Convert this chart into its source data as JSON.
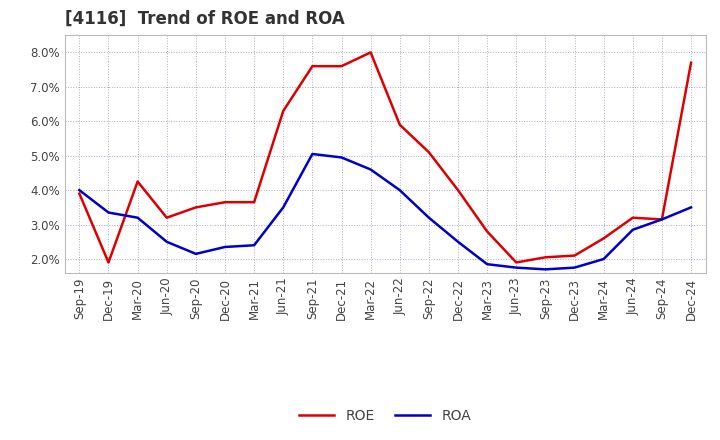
{
  "title": "[4116]  Trend of ROE and ROA",
  "labels": [
    "Sep-19",
    "Dec-19",
    "Mar-20",
    "Jun-20",
    "Sep-20",
    "Dec-20",
    "Mar-21",
    "Jun-21",
    "Sep-21",
    "Dec-21",
    "Mar-22",
    "Jun-22",
    "Sep-22",
    "Dec-22",
    "Mar-23",
    "Jun-23",
    "Sep-23",
    "Dec-23",
    "Mar-24",
    "Jun-24",
    "Sep-24",
    "Dec-24"
  ],
  "roe": [
    3.9,
    1.9,
    4.25,
    3.2,
    3.5,
    3.65,
    3.65,
    6.3,
    7.6,
    7.6,
    8.0,
    5.9,
    5.1,
    4.0,
    2.8,
    1.9,
    2.05,
    2.1,
    2.6,
    3.2,
    3.15,
    7.7
  ],
  "roa": [
    4.0,
    3.35,
    3.2,
    2.5,
    2.15,
    2.35,
    2.4,
    3.5,
    5.05,
    4.95,
    4.6,
    4.0,
    3.2,
    2.5,
    1.85,
    1.75,
    1.7,
    1.75,
    2.0,
    2.85,
    3.15,
    3.5
  ],
  "roe_color": "#dd0000",
  "roa_color": "#0000cc",
  "background_color": "#ffffff",
  "grid_color": "#aaaacc",
  "ylim": [
    1.6,
    8.5
  ],
  "yticks": [
    2.0,
    3.0,
    4.0,
    5.0,
    6.0,
    7.0,
    8.0
  ],
  "title_fontsize": 12,
  "title_color": "#333333",
  "legend_labels": [
    "ROE",
    "ROA"
  ],
  "line_width": 1.8,
  "tick_label_color": "#444444",
  "tick_fontsize": 8.5
}
